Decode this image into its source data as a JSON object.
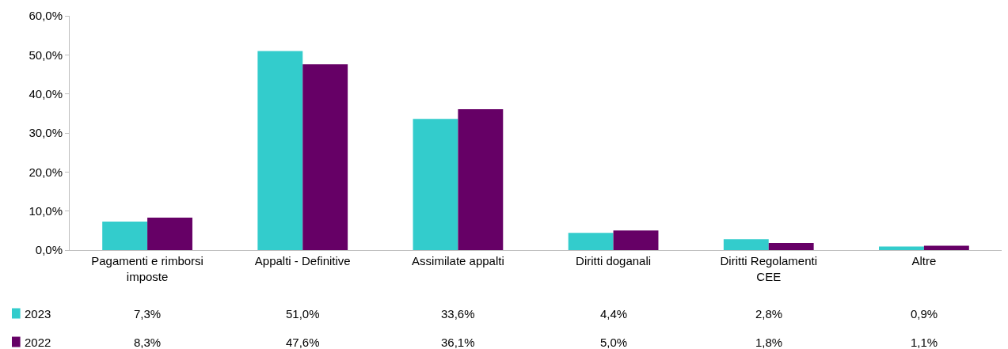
{
  "chart_data": {
    "type": "bar",
    "categories": [
      "Pagamenti e rimborsi imposte",
      "Appalti - Definitive",
      "Assimilate appalti",
      "Diritti doganali",
      "Diritti Regolamenti CEE",
      "Altre"
    ],
    "series": [
      {
        "name": "2023",
        "color": "#33cccc",
        "values": [
          7.3,
          51.0,
          33.6,
          4.4,
          2.8,
          0.9
        ],
        "value_labels": [
          "7,3%",
          "51,0%",
          "33,6%",
          "4,4%",
          "2,8%",
          "0,9%"
        ]
      },
      {
        "name": "2022",
        "color": "#660066",
        "values": [
          8.3,
          47.6,
          36.1,
          5.0,
          1.8,
          1.1
        ],
        "value_labels": [
          "8,3%",
          "47,6%",
          "36,1%",
          "5,0%",
          "1,8%",
          "1,1%"
        ]
      }
    ],
    "ylim": [
      0,
      60
    ],
    "yticks": [
      {
        "value": 0,
        "label": "0,0%"
      },
      {
        "value": 10,
        "label": "10,0%"
      },
      {
        "value": 20,
        "label": "20,0%"
      },
      {
        "value": 30,
        "label": "30,0%"
      },
      {
        "value": 40,
        "label": "40,0%"
      },
      {
        "value": 50,
        "label": "50,0%"
      },
      {
        "value": 60,
        "label": "60,0%"
      }
    ],
    "grid": false,
    "legend": "bottom left"
  }
}
